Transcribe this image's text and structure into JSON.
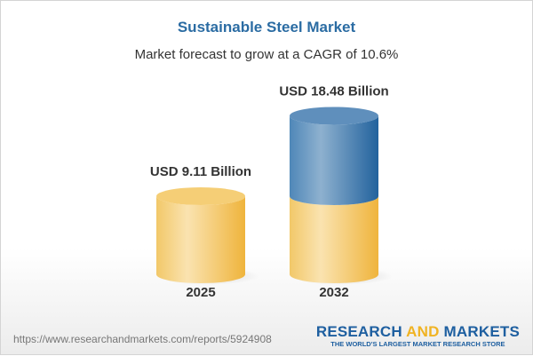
{
  "chart_data": {
    "type": "bar",
    "style": "3d-cylinder",
    "title": "Sustainable Steel Market",
    "subtitle": "Market forecast to grow at a CAGR of 10.6%",
    "categories": [
      "2025",
      "2032"
    ],
    "values": [
      9.11,
      18.48
    ],
    "data_labels": [
      "USD 9.11 Billion",
      "USD 18.48 Billion"
    ],
    "unit": "USD Billion",
    "colors": {
      "base": "#f3c55f",
      "growth": "#2f6da3",
      "title": "#2b6ca3"
    }
  },
  "footer": {
    "url": "https://www.researchandmarkets.com/reports/5924908",
    "logo": {
      "word1": "RESEARCH",
      "word2": "AND",
      "word3": "MARKETS",
      "tagline": "THE WORLD'S LARGEST MARKET RESEARCH STORE"
    }
  }
}
